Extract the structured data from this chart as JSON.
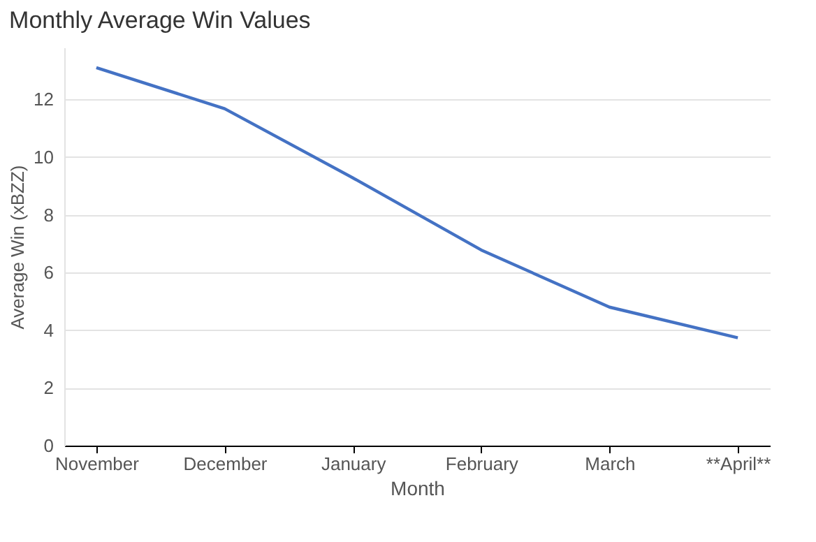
{
  "chart_data": {
    "type": "line",
    "title": "Monthly Average Win Values",
    "xlabel": "Month",
    "ylabel": "Average Win (xBZZ)",
    "categories": [
      "November",
      "December",
      "January",
      "February",
      "March",
      "**April**"
    ],
    "series": [
      {
        "color": "#4472c4",
        "values": [
          13.1,
          11.68,
          9.28,
          6.78,
          4.8,
          3.74
        ]
      }
    ],
    "ylim": [
      0,
      13.8
    ],
    "yticks": [
      0,
      2,
      4,
      6,
      8,
      10,
      12
    ],
    "grid": "y",
    "marker": "none",
    "line_style": "solid"
  }
}
